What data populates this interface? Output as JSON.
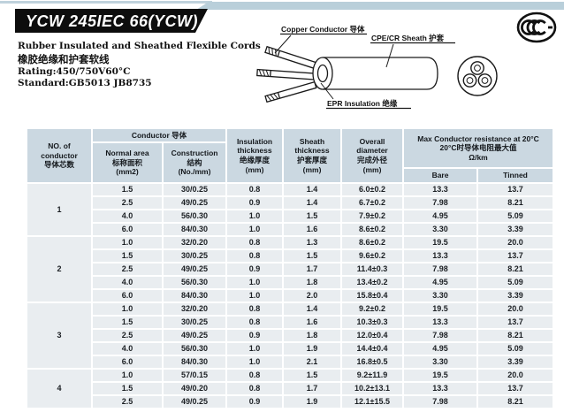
{
  "header": {
    "title": "YCW 245IEC 66(YCW)",
    "subtitle_en": "Rubber Insulated and Sheathed Flexible Cords",
    "subtitle_zh": "橡胶绝缘和护套软线",
    "rating": "Rating:450/750V60°C",
    "standard": "Standard:GB5013 JB8735",
    "cert_mark": "CCC"
  },
  "diagram": {
    "label_conductor": "Copper Conductor 导体",
    "label_sheath": "CPE/CR Sheath 护套",
    "label_insulation": "EPR Insulation 绝缘"
  },
  "table": {
    "headers": {
      "no_of_conductor": "NO. of\nconductor\n导体芯数",
      "conductor_group": "Conductor 导体",
      "normal_area": "Normal area\n标称面积\n(mm2)",
      "construction": "Construction\n结构\n(No./mm)",
      "insulation": "Insulation\nthickness\n绝缘厚度\n(mm)",
      "sheath": "Sheath\nthickness\n护套厚度\n(mm)",
      "overall": "Overall\ndiameter\n完成外径\n(mm)",
      "resistance_group": "Max Conductor resistance at 20°C\n20°C时导体电阻最大值\nΩ/km",
      "bare": "Bare",
      "tinned": "Tinned"
    },
    "groups": [
      {
        "conductors": "1",
        "rows": [
          [
            "1.5",
            "30/0.25",
            "0.8",
            "1.4",
            "6.0±0.2",
            "13.3",
            "13.7"
          ],
          [
            "2.5",
            "49/0.25",
            "0.9",
            "1.4",
            "6.7±0.2",
            "7.98",
            "8.21"
          ],
          [
            "4.0",
            "56/0.30",
            "1.0",
            "1.5",
            "7.9±0.2",
            "4.95",
            "5.09"
          ],
          [
            "6.0",
            "84/0.30",
            "1.0",
            "1.6",
            "8.6±0.2",
            "3.30",
            "3.39"
          ]
        ]
      },
      {
        "conductors": "2",
        "rows": [
          [
            "1.0",
            "32/0.20",
            "0.8",
            "1.3",
            "8.6±0.2",
            "19.5",
            "20.0"
          ],
          [
            "1.5",
            "30/0.25",
            "0.8",
            "1.5",
            "9.6±0.2",
            "13.3",
            "13.7"
          ],
          [
            "2.5",
            "49/0.25",
            "0.9",
            "1.7",
            "11.4±0.3",
            "7.98",
            "8.21"
          ],
          [
            "4.0",
            "56/0.30",
            "1.0",
            "1.8",
            "13.4±0.2",
            "4.95",
            "5.09"
          ],
          [
            "6.0",
            "84/0.30",
            "1.0",
            "2.0",
            "15.8±0.4",
            "3.30",
            "3.39"
          ]
        ]
      },
      {
        "conductors": "3",
        "rows": [
          [
            "1.0",
            "32/0.20",
            "0.8",
            "1.4",
            "9.2±0.2",
            "19.5",
            "20.0"
          ],
          [
            "1.5",
            "30/0.25",
            "0.8",
            "1.6",
            "10.3±0.3",
            "13.3",
            "13.7"
          ],
          [
            "2.5",
            "49/0.25",
            "0.9",
            "1.8",
            "12.0±0.4",
            "7.98",
            "8.21"
          ],
          [
            "4.0",
            "56/0.30",
            "1.0",
            "1.9",
            "14.4±0.4",
            "4.95",
            "5.09"
          ],
          [
            "6.0",
            "84/0.30",
            "1.0",
            "2.1",
            "16.8±0.5",
            "3.30",
            "3.39"
          ]
        ]
      },
      {
        "conductors": "4",
        "rows": [
          [
            "1.0",
            "57/0.15",
            "0.8",
            "1.5",
            "9.2±11.9",
            "19.5",
            "20.0"
          ],
          [
            "1.5",
            "49/0.20",
            "0.8",
            "1.7",
            "10.2±13.1",
            "13.3",
            "13.7"
          ],
          [
            "2.5",
            "49/0.25",
            "0.9",
            "1.9",
            "12.1±15.5",
            "7.98",
            "8.21"
          ]
        ]
      }
    ]
  },
  "colors": {
    "banner_bg": "#0d0d0d",
    "accent_strip": "#b9cfda",
    "header_cell_bg": "#cbd8e1",
    "data_cell_bg": "#e9edf0"
  }
}
